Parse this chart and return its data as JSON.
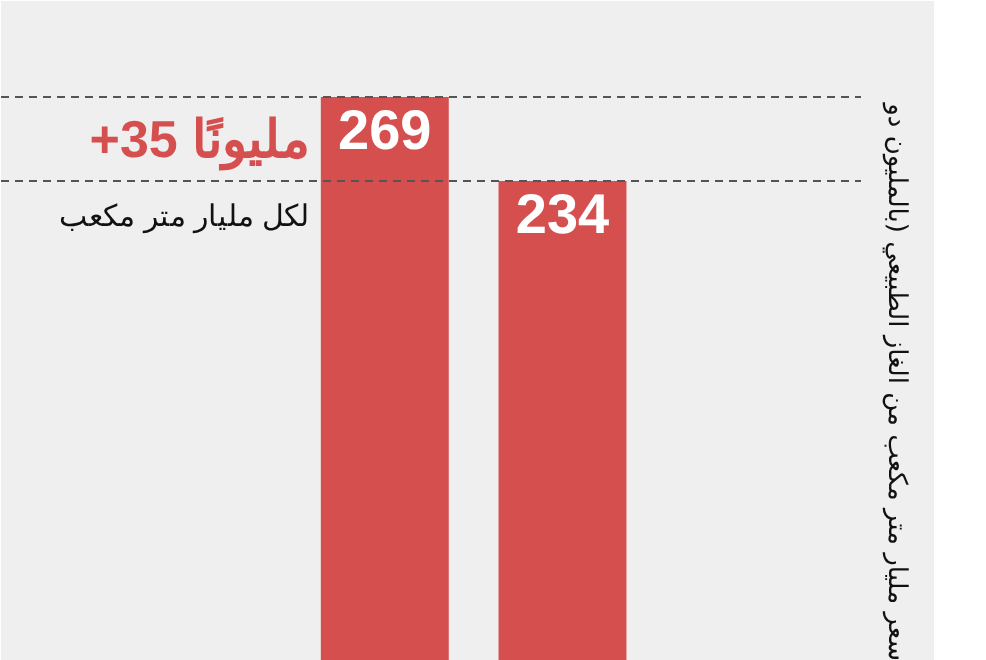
{
  "chart_data": {
    "type": "bar",
    "categories": [
      null,
      null
    ],
    "values": [
      269,
      234
    ],
    "color": "#d64f4f",
    "data_labels": true,
    "ylim": [
      34,
      309
    ],
    "ref_lines": [
      {
        "axis": "y",
        "value": 269,
        "label": null,
        "color": "#555555",
        "line_style": "dashed"
      },
      {
        "axis": "y",
        "value": 234,
        "label": null,
        "color": "#555555",
        "line_style": "dashed"
      }
    ],
    "annotations": [
      "+35 مليونًا",
      "لكل مليار متر مكعب",
      "سعر مليار متر مكعب من الغاز الطبيعي (بالمليون دو"
    ],
    "grid": false
  }
}
